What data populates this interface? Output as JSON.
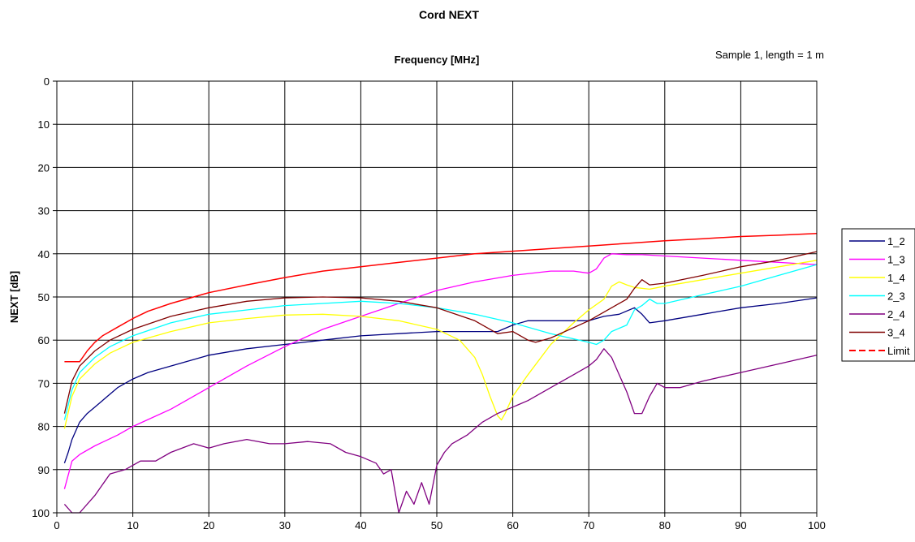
{
  "chart_data": {
    "type": "line",
    "title": "Cord NEXT",
    "xlabel": "Frequency [MHz]",
    "ylabel": "NEXT [dB]",
    "annotation": "Sample 1, length = 1 m",
    "xlim": [
      0,
      100
    ],
    "ylim": [
      0,
      100
    ],
    "y_inverted": true,
    "x_axis_position": "top-title, ticks-bottom",
    "grid": true,
    "legend_position": "right",
    "x_ticks": [
      "0",
      "10",
      "20",
      "30",
      "40",
      "50",
      "60",
      "70",
      "80",
      "90",
      "100"
    ],
    "y_ticks": [
      "0",
      "10",
      "20",
      "30",
      "40",
      "50",
      "60",
      "70",
      "80",
      "90",
      "100"
    ],
    "series": [
      {
        "name": "1_2",
        "color": "#000080",
        "dash": false,
        "x": [
          1,
          1.5,
          2,
          3,
          4,
          5,
          6,
          7,
          8,
          10,
          12,
          15,
          18,
          20,
          25,
          30,
          35,
          40,
          45,
          50,
          55,
          58,
          60,
          62,
          65,
          70,
          72,
          74,
          76,
          77,
          78,
          80,
          85,
          90,
          95,
          100
        ],
        "y": [
          88.5,
          86,
          83,
          79,
          77,
          75.5,
          74,
          72.5,
          71,
          69,
          67.5,
          66,
          64.5,
          63.5,
          62,
          61,
          60,
          59,
          58.5,
          58,
          58,
          58,
          56.5,
          55.5,
          55.5,
          55.5,
          54.5,
          54,
          52.5,
          54,
          56,
          55.5,
          54,
          52.5,
          51.5,
          50.2
        ]
      },
      {
        "name": "1_3",
        "color": "#FF00FF",
        "dash": false,
        "x": [
          1,
          2,
          3,
          5,
          8,
          10,
          15,
          20,
          25,
          30,
          35,
          40,
          45,
          50,
          55,
          60,
          65,
          68,
          70,
          71,
          72,
          73,
          75,
          77,
          80,
          85,
          90,
          95,
          100
        ],
        "y": [
          94.5,
          88,
          86.5,
          84.5,
          82,
          80,
          76,
          71,
          66,
          61.5,
          57.5,
          54.5,
          51.5,
          48.5,
          46.5,
          45,
          44,
          44,
          44.5,
          43.5,
          41,
          40,
          40.2,
          40.2,
          40.5,
          41,
          41.5,
          42,
          42.5
        ]
      },
      {
        "name": "1_4",
        "color": "#FFFF00",
        "dash": false,
        "x": [
          1,
          2,
          3,
          5,
          7,
          10,
          15,
          20,
          25,
          30,
          35,
          40,
          45,
          50,
          53,
          55,
          56,
          57,
          58,
          58.5,
          59,
          60,
          62,
          65,
          68,
          70,
          72,
          73,
          74,
          75,
          76,
          78,
          80,
          85,
          90,
          95,
          100
        ],
        "y": [
          80.5,
          73,
          69,
          65.5,
          63,
          60.5,
          58,
          56,
          55,
          54.2,
          54,
          54.5,
          55.5,
          57.5,
          60,
          64,
          68,
          73,
          77.5,
          78.5,
          77,
          73,
          68,
          61,
          56,
          53,
          50.5,
          47.5,
          46.5,
          47.2,
          47.8,
          48.2,
          47.5,
          46,
          44.5,
          43,
          41.5
        ]
      },
      {
        "name": "2_3",
        "color": "#00FFFF",
        "dash": false,
        "x": [
          1,
          2,
          3,
          5,
          7,
          10,
          15,
          20,
          25,
          30,
          35,
          40,
          45,
          50,
          55,
          60,
          65,
          70,
          71,
          72,
          73,
          75,
          76,
          77,
          78,
          79,
          80,
          85,
          90,
          95,
          100
        ],
        "y": [
          78.5,
          71.5,
          67.5,
          64,
          61.5,
          59,
          56,
          54,
          53,
          52,
          51.5,
          51,
          51.5,
          52.5,
          54,
          56,
          58.5,
          60.5,
          61,
          60,
          58,
          56.5,
          53,
          52,
          50.5,
          51.5,
          51.5,
          49.5,
          47.5,
          45,
          42.5
        ]
      },
      {
        "name": "2_4",
        "color": "#800080",
        "dash": false,
        "x": [
          1,
          2,
          3,
          5,
          7,
          9,
          11,
          13,
          15,
          18,
          20,
          22,
          25,
          28,
          30,
          33,
          36,
          38,
          40,
          42,
          43,
          44,
          45,
          46,
          47,
          48,
          49,
          50,
          51,
          52,
          54,
          56,
          58,
          60,
          62,
          65,
          68,
          70,
          71,
          72,
          73,
          74,
          75,
          76,
          77,
          78,
          79,
          80,
          82,
          85,
          90,
          95,
          100
        ],
        "y": [
          98,
          100,
          100,
          96,
          91,
          90,
          88,
          88,
          86,
          84,
          85,
          84,
          83,
          84,
          84,
          83.5,
          84,
          86,
          87,
          88.5,
          91,
          90,
          100,
          95,
          98,
          93,
          98,
          89,
          86,
          84,
          82,
          79,
          77,
          75.5,
          74,
          71,
          68,
          66,
          64.5,
          62,
          64,
          68,
          72,
          77,
          77,
          73,
          70,
          71,
          71,
          69.5,
          67.5,
          65.5,
          63.5
        ]
      },
      {
        "name": "3_4",
        "color": "#800000",
        "dash": false,
        "x": [
          1,
          2,
          3,
          5,
          7,
          10,
          15,
          20,
          25,
          30,
          35,
          40,
          45,
          50,
          55,
          58,
          60,
          62,
          63,
          65,
          70,
          73,
          75,
          76,
          77,
          78,
          80,
          85,
          90,
          95,
          100
        ],
        "y": [
          77,
          69.5,
          66,
          62.5,
          60,
          57.5,
          54.5,
          52.5,
          51,
          50.2,
          50,
          50.2,
          51,
          52.5,
          55.5,
          58.5,
          58,
          60,
          60.5,
          59.5,
          55.5,
          52.5,
          50.5,
          48,
          46,
          47.2,
          46.8,
          45,
          43,
          41.5,
          39.5
        ]
      },
      {
        "name": "Limit",
        "color": "#FF0000",
        "dash": true,
        "x": [
          1,
          2,
          3,
          3.2,
          4,
          5,
          6,
          8,
          10,
          12,
          15,
          20,
          25,
          30,
          35,
          40,
          45,
          50,
          55,
          60,
          65,
          70,
          75,
          80,
          85,
          90,
          95,
          100
        ],
        "y": [
          65,
          65,
          65,
          64.5,
          62.5,
          60.5,
          59,
          57,
          55,
          53.3,
          51.5,
          49,
          47.2,
          45.5,
          44,
          43,
          42,
          41,
          40,
          39.4,
          38.8,
          38.2,
          37.6,
          37,
          36.5,
          36,
          35.7,
          35.3
        ]
      }
    ]
  }
}
